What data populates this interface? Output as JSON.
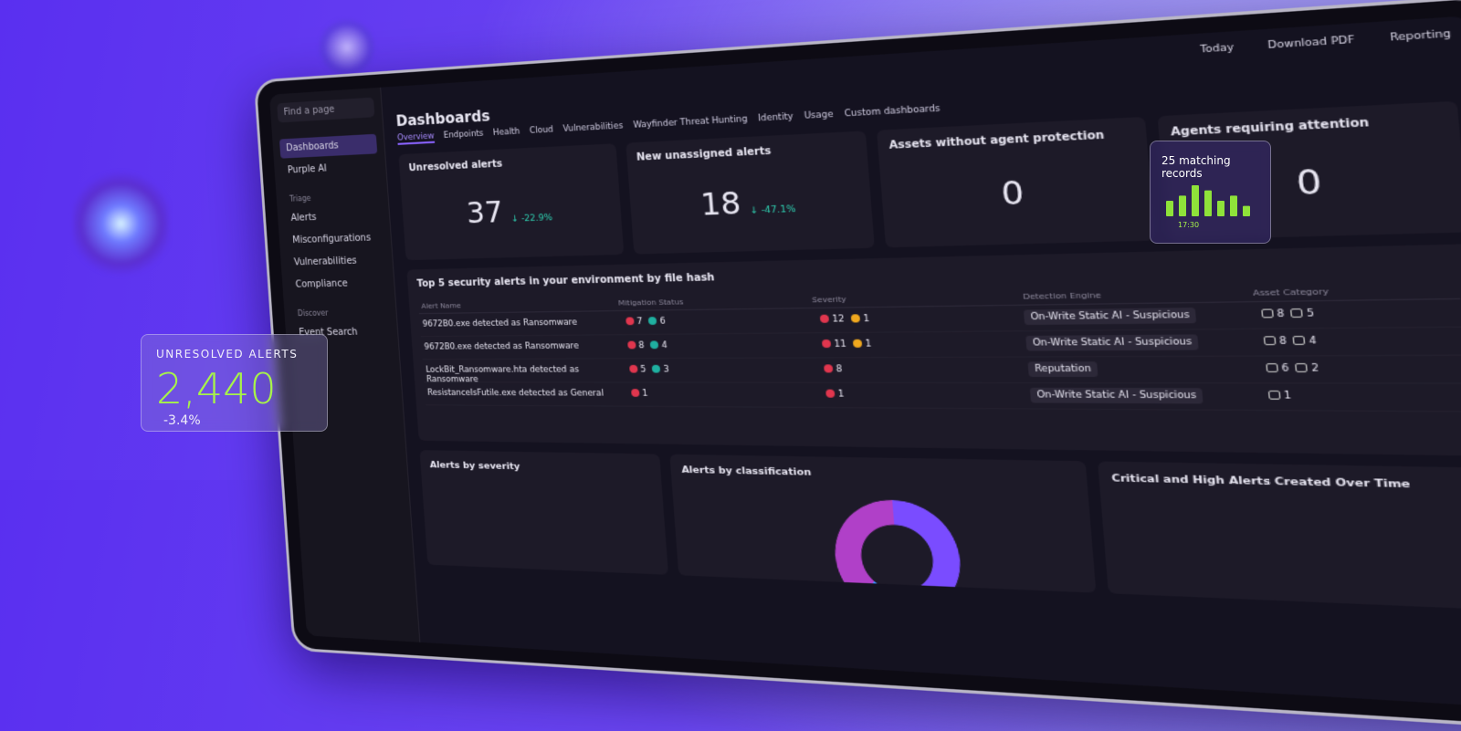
{
  "sidebar": {
    "search": "Find a page",
    "nav": [
      "Dashboards",
      "Purple AI"
    ],
    "sections": [
      {
        "title": "Triage",
        "items": [
          "Alerts",
          "Misconfigurations",
          "Vulnerabilities",
          "Compliance"
        ]
      },
      {
        "title": "Discover",
        "items": [
          "Event Search"
        ]
      }
    ]
  },
  "toolbar": [
    "Today",
    "Download PDF",
    "Reporting"
  ],
  "dashboard": {
    "title": "Dashboards",
    "tabs": [
      "Overview",
      "Endpoints",
      "Health",
      "Cloud",
      "Vulnerabilities",
      "Wayfinder Threat Hunting",
      "Identity",
      "Usage",
      "Custom dashboards"
    ],
    "cards": [
      {
        "title": "Unresolved alerts",
        "value": 37,
        "change": "-22.9%"
      },
      {
        "title": "New unassigned alerts",
        "value": 18,
        "change": "-47.1%"
      },
      {
        "title": "Assets without agent protection",
        "value": 0
      },
      {
        "title": "Agents requiring attention",
        "value": 0
      }
    ],
    "table": {
      "title": "Top 5 security alerts in your environment by file hash",
      "columns": [
        "Alert Name",
        "Mitigation Status",
        "Severity",
        "Detection Engine",
        "Asset Category"
      ],
      "rows": [
        {
          "name": "9672B0.exe detected as Ransomware",
          "mitigation": [
            7,
            6
          ],
          "severity": [
            12,
            1
          ],
          "engine": "On-Write Static AI - Suspicious",
          "assets": [
            8,
            5
          ]
        },
        {
          "name": "9672B0.exe detected as Ransomware",
          "mitigation": [
            8,
            4
          ],
          "severity": [
            11,
            1
          ],
          "engine": "On-Write Static AI - Suspicious",
          "assets": [
            8,
            4
          ]
        },
        {
          "name": "LockBit_Ransomware.hta detected as Ransomware",
          "mitigation": [
            5,
            3
          ],
          "severity": [
            8
          ],
          "engine": "Reputation",
          "assets": [
            6,
            2
          ]
        },
        {
          "name": "ResistanceIsFutile.exe detected as General",
          "mitigation": [
            1
          ],
          "severity": [
            1
          ],
          "engine": "On-Write Static AI - Suspicious",
          "assets": [
            1
          ]
        }
      ]
    },
    "panels": [
      "Alerts by severity",
      "Alerts by classification",
      "Critical and High Alerts Created Over Time"
    ]
  },
  "overlay_stat": {
    "label": "UNRESOLVED ALERTS",
    "value": "2,440",
    "change": "-3.4%"
  },
  "overlay_records": {
    "title": "25 matching records",
    "bars": [
      3,
      4,
      6,
      5,
      3,
      4,
      2
    ],
    "time": "17:30"
  }
}
